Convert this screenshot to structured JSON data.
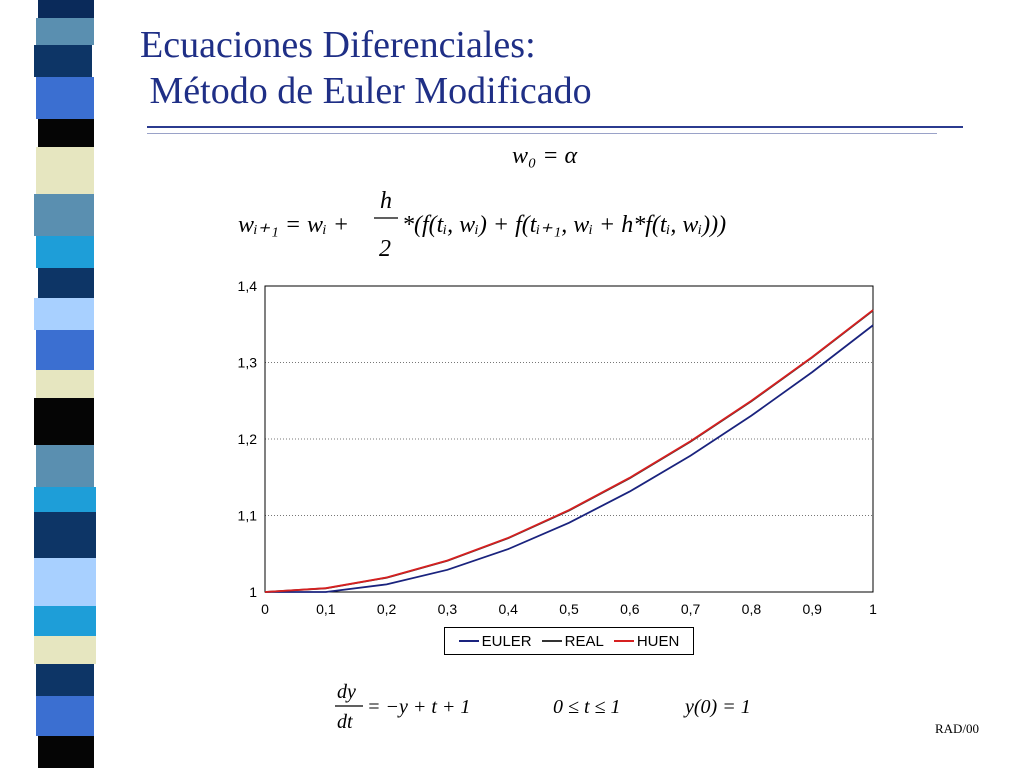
{
  "slide": {
    "title_line1": "Ecuaciones Diferenciales:",
    "title_line2": " Método de Euler Modificado",
    "footer": "RAD/00"
  },
  "colors": {
    "title": "#1f2f86",
    "euler": "#1a237e",
    "real": "#333333",
    "huen": "#d62020"
  },
  "formulas": {
    "init": "w₀ = α",
    "update_lhs": "wᵢ₊₁ = wᵢ +",
    "update_frac_num": "h",
    "update_frac_den": "2",
    "update_rhs": "*(f(tᵢ, wᵢ) + f(tᵢ₊₁, wᵢ + h*f(tᵢ, wᵢ)))",
    "ode_num": "dy",
    "ode_den": "dt",
    "ode_rhs": "= −y + t + 1",
    "domain": "0 ≤ t ≤ 1",
    "initial_condition": "y(0) = 1"
  },
  "chart_data": {
    "type": "line",
    "x": [
      0,
      0.1,
      0.2,
      0.3,
      0.4,
      0.5,
      0.6,
      0.7,
      0.8,
      0.9,
      1
    ],
    "xticks": [
      "0",
      "0,1",
      "0,2",
      "0,3",
      "0,4",
      "0,5",
      "0,6",
      "0,7",
      "0,8",
      "0,9",
      "1"
    ],
    "yticks": [
      "1",
      "1,1",
      "1,2",
      "1,3",
      "1,4"
    ],
    "ylim": [
      1,
      1.4
    ],
    "xlim": [
      0,
      1
    ],
    "grid": "horizontal dotted",
    "legend_position": "bottom",
    "series": [
      {
        "name": "EULER",
        "values": [
          1.0,
          1.0,
          1.01,
          1.029,
          1.0561,
          1.0905,
          1.1314,
          1.1783,
          1.2305,
          1.2874,
          1.3487
        ]
      },
      {
        "name": "REAL",
        "values": [
          1.0,
          1.0048,
          1.0187,
          1.0408,
          1.0703,
          1.1065,
          1.1488,
          1.1966,
          1.2493,
          1.3066,
          1.3679
        ]
      },
      {
        "name": "HUEN",
        "values": [
          1.0,
          1.005,
          1.019,
          1.0412,
          1.0708,
          1.1071,
          1.1494,
          1.1972,
          1.25,
          1.3072,
          1.3685
        ]
      }
    ]
  }
}
